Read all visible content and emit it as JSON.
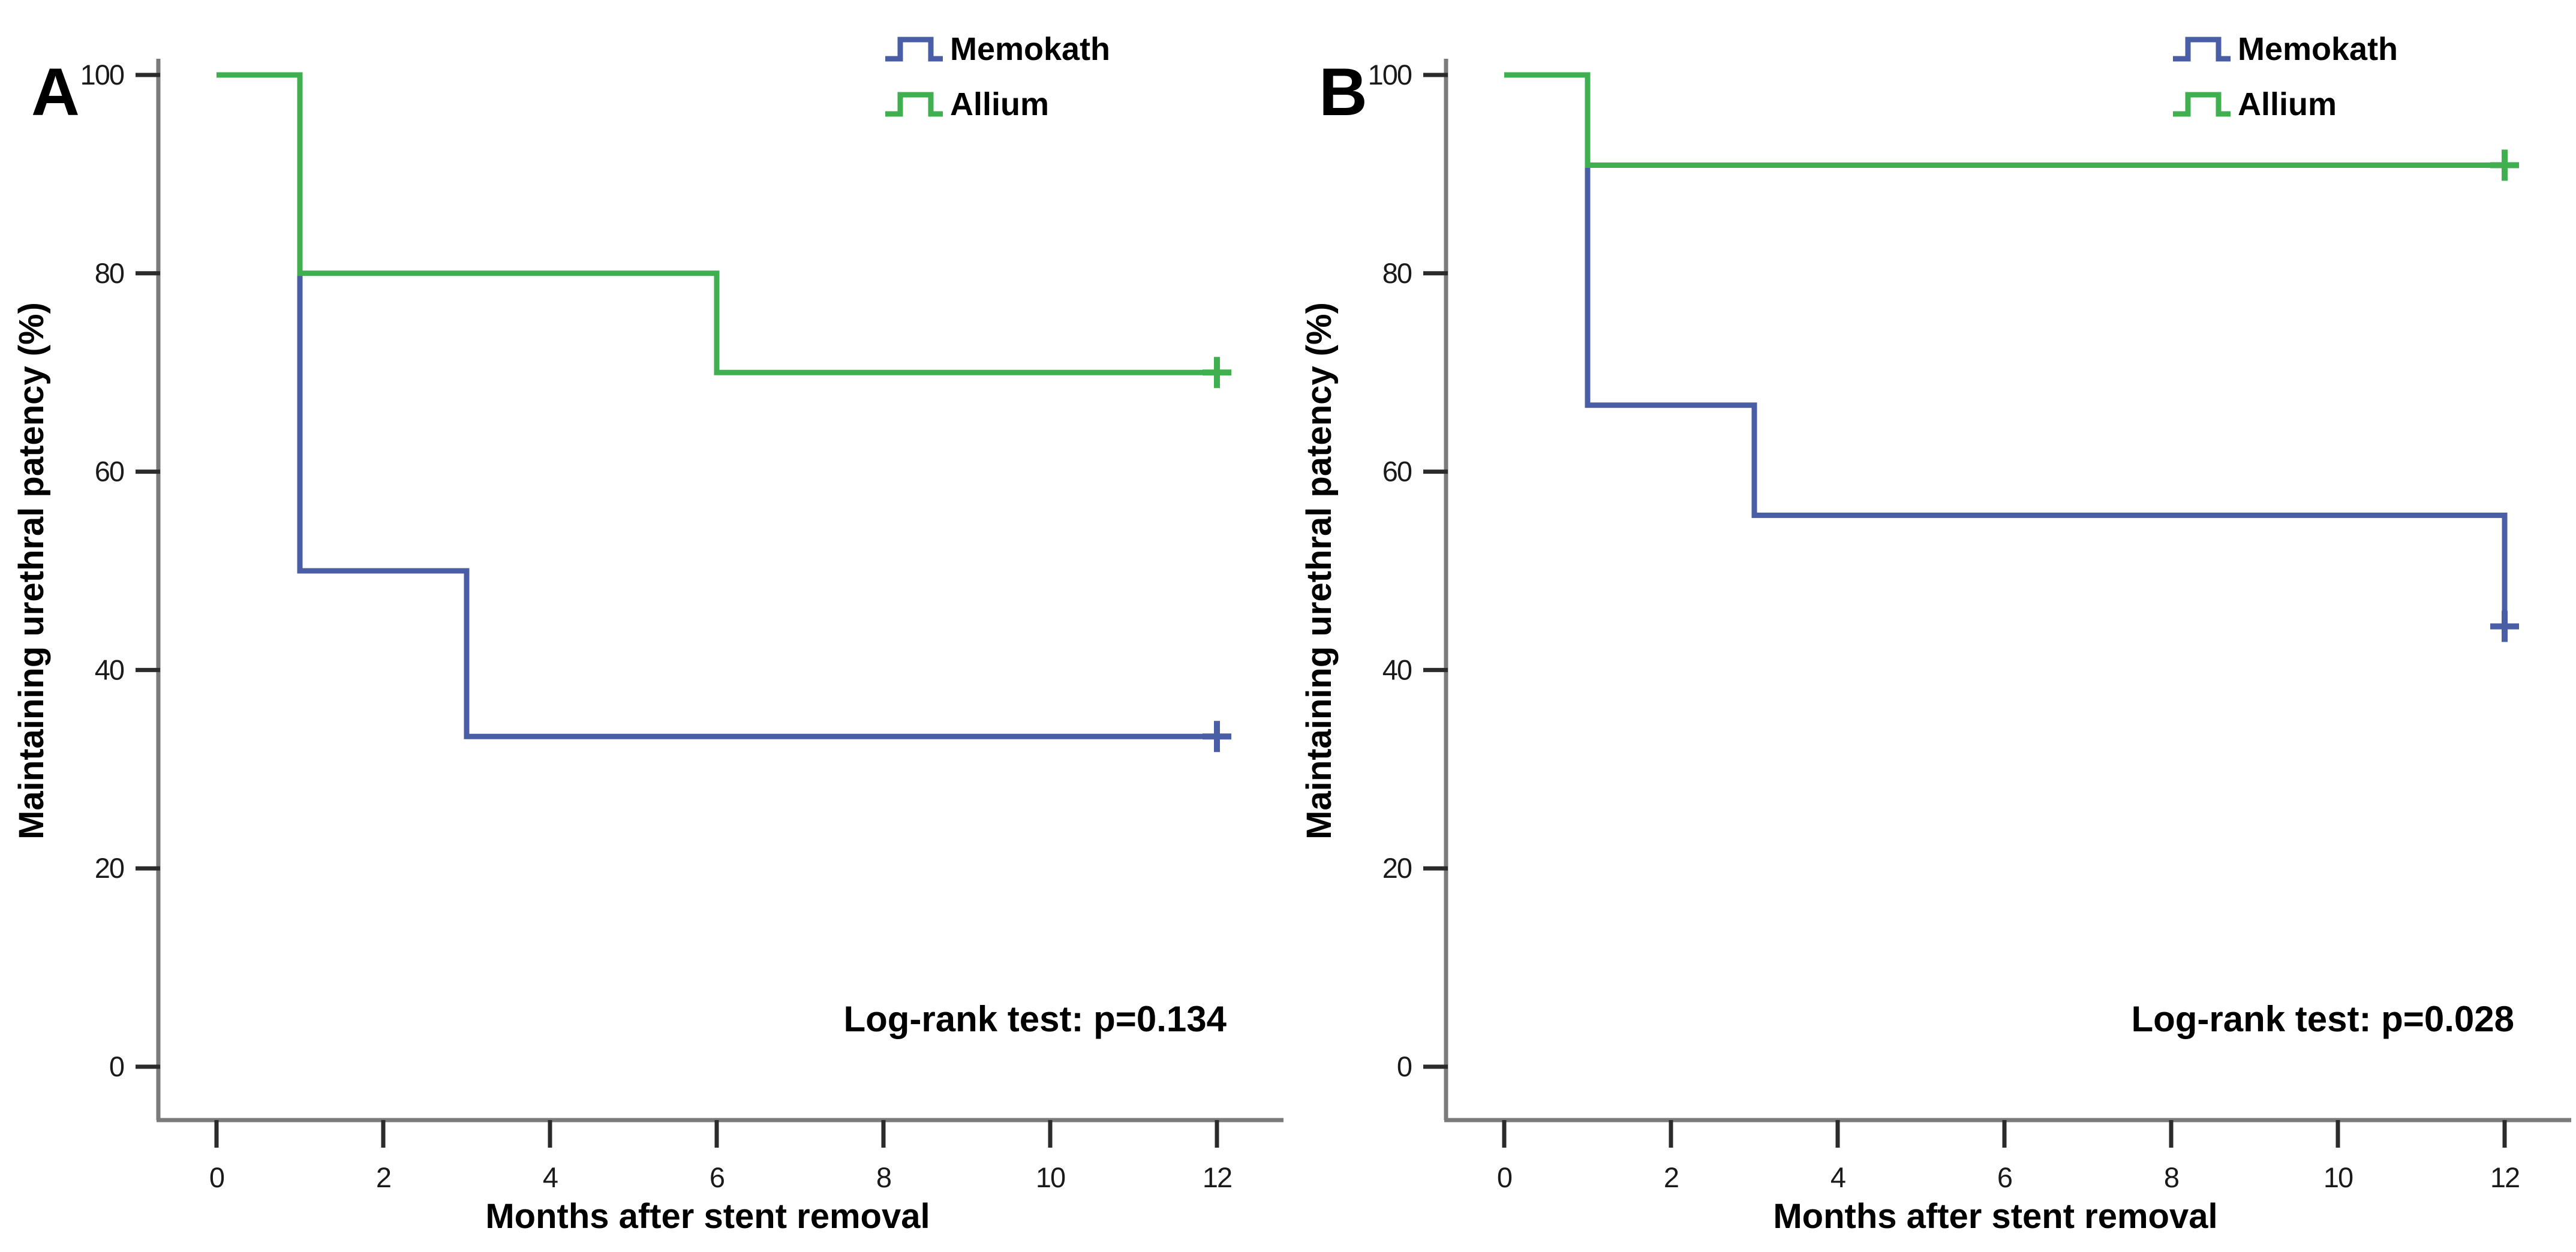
{
  "figure": {
    "background": "#ffffff",
    "axis_color": "#7b7b7b",
    "tick_color": "#2b2b2b",
    "text_color": "#000000"
  },
  "chart_data": [
    {
      "type": "line",
      "subtype": "kaplan-meier-step",
      "panel_label": "A",
      "xlabel": "Months after stent removal",
      "ylabel": "Maintaining urethral patency (%)",
      "annotation": "Log-rank test: p=0.134",
      "xlim": [
        0,
        12
      ],
      "ylim": [
        0,
        100
      ],
      "xticks": [
        0,
        2,
        4,
        6,
        8,
        10,
        12
      ],
      "yticks": [
        0,
        20,
        40,
        60,
        80,
        100
      ],
      "grid": false,
      "legend_position": "top-right-inside",
      "series": [
        {
          "name": "Memokath",
          "color": "#4a5ea6",
          "step_points": [
            [
              0,
              100
            ],
            [
              1,
              100
            ],
            [
              1,
              50
            ],
            [
              3,
              50
            ],
            [
              3,
              33.3
            ],
            [
              12,
              33.3
            ]
          ],
          "censor_points": [
            [
              12,
              33.3
            ]
          ]
        },
        {
          "name": "Allium",
          "color": "#3faf50",
          "step_points": [
            [
              0,
              100
            ],
            [
              1,
              100
            ],
            [
              1,
              80
            ],
            [
              6,
              80
            ],
            [
              6,
              70
            ],
            [
              12,
              70
            ]
          ],
          "censor_points": [
            [
              12,
              70
            ]
          ]
        }
      ]
    },
    {
      "type": "line",
      "subtype": "kaplan-meier-step",
      "panel_label": "B",
      "xlabel": "Months after stent removal",
      "ylabel": "Maintaining urethral patency (%)",
      "annotation": "Log-rank test: p=0.028",
      "xlim": [
        0,
        12
      ],
      "ylim": [
        0,
        100
      ],
      "xticks": [
        0,
        2,
        4,
        6,
        8,
        10,
        12
      ],
      "yticks": [
        0,
        20,
        40,
        60,
        80,
        100
      ],
      "grid": false,
      "legend_position": "top-right-inside",
      "series": [
        {
          "name": "Memokath",
          "color": "#4a5ea6",
          "step_points": [
            [
              0,
              100
            ],
            [
              1,
              100
            ],
            [
              1,
              66.7
            ],
            [
              3,
              66.7
            ],
            [
              3,
              55.6
            ],
            [
              12,
              55.6
            ],
            [
              12,
              44.4
            ]
          ],
          "censor_points": [
            [
              12,
              44.4
            ]
          ]
        },
        {
          "name": "Allium",
          "color": "#3faf50",
          "step_points": [
            [
              0,
              100
            ],
            [
              1,
              100
            ],
            [
              1,
              90.9
            ],
            [
              12,
              90.9
            ]
          ],
          "censor_points": [
            [
              12,
              90.9
            ]
          ]
        }
      ]
    }
  ]
}
